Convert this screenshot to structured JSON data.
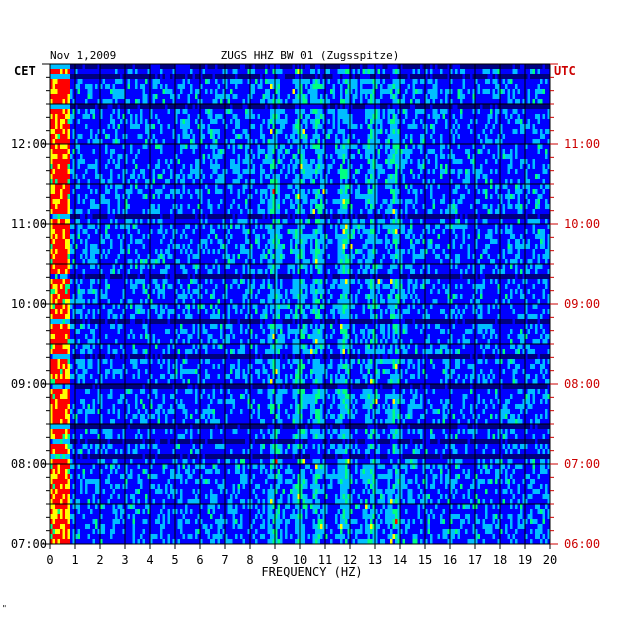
{
  "chart_data": {
    "type": "heatmap",
    "header_date": "Nov 1,2009",
    "title": "ZUGS HHZ BW 01 (Zugsspitze)",
    "left_zone_label": "CET",
    "right_zone_label": "UTC",
    "xlabel": "FREQUENCY (HZ)",
    "x_ticks": [
      "0",
      "1",
      "2",
      "3",
      "4",
      "5",
      "6",
      "7",
      "8",
      "9",
      "10",
      "11",
      "12",
      "13",
      "14",
      "15",
      "16",
      "17",
      "18",
      "19",
      "20"
    ],
    "xlim": [
      0,
      20
    ],
    "left_time_ticks": [
      "07:00",
      "08:00",
      "09:00",
      "10:00",
      "11:00",
      "12:00"
    ],
    "right_time_ticks": [
      "06:00",
      "07:00",
      "08:00",
      "09:00",
      "10:00",
      "11:00"
    ],
    "ylim_hours_cet": [
      7,
      13
    ],
    "colormap": [
      "#00007f",
      "#0000ff",
      "#00bfff",
      "#00ff80",
      "#ffff00",
      "#ff0000"
    ],
    "background_color": "#0a1f9a",
    "dominant_energy_bands_hz": [
      0.4,
      9,
      10,
      10.7,
      11.8,
      12.9,
      13.8
    ]
  },
  "colors": {
    "left_axis": "#000000",
    "right_axis": "#cc0000",
    "grid": "#000000"
  },
  "corner_mark": "\""
}
